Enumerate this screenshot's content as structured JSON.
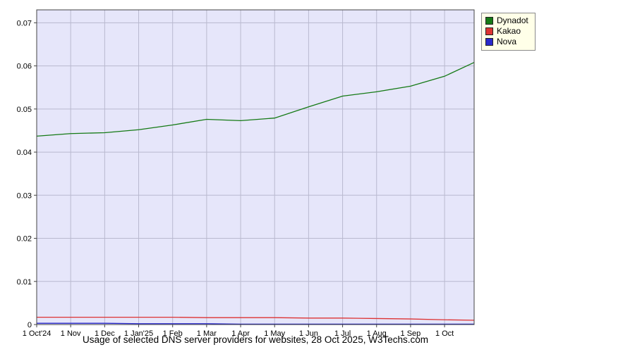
{
  "title": "Usage of selected DNS server providers for websites, 28 Oct 2025, W3Techs.com",
  "legend": [
    {
      "label": "Dynadot",
      "color": "#157a15"
    },
    {
      "label": "Kakao",
      "color": "#dd3333"
    },
    {
      "label": "Nova",
      "color": "#2929cc"
    }
  ],
  "colors": {
    "plot_bg": "#e6e6fa",
    "grid": "#b9b9cf",
    "axis": "#444444",
    "legend_bg": "#ffffe8",
    "text": "#000000"
  },
  "chart_data": {
    "type": "line",
    "title": "Usage of selected DNS server providers for websites, 28 Oct 2025, W3Techs.com",
    "xlabel": "",
    "ylabel": "",
    "x_tick_labels": [
      "1 Oct'24",
      "1 Nov",
      "1 Dec",
      "1 Jan'25",
      "1 Feb",
      "1 Mar",
      "1 Apr",
      "1 May",
      "1 Jun",
      "1 Jul",
      "1 Aug",
      "1 Sep",
      "1 Oct"
    ],
    "y_ticks": [
      0,
      0.01,
      0.02,
      0.03,
      0.04,
      0.05,
      0.06,
      0.07
    ],
    "y_tick_labels": [
      "0",
      "0.01",
      "0.02",
      "0.03",
      "0.04",
      "0.05",
      "0.06",
      "0.07"
    ],
    "xlim": [
      0,
      12.87
    ],
    "ylim": [
      0,
      0.073
    ],
    "grid": true,
    "legend_position": "top-right-outside",
    "x": [
      0,
      1,
      2,
      3,
      4,
      5,
      6,
      7,
      8,
      9,
      10,
      11,
      12,
      12.87
    ],
    "series": [
      {
        "name": "Dynadot",
        "color": "#157a15",
        "values": [
          0.0437,
          0.0443,
          0.0445,
          0.0452,
          0.0463,
          0.0476,
          0.0473,
          0.0479,
          0.0505,
          0.053,
          0.054,
          0.0553,
          0.0576,
          0.0608
        ]
      },
      {
        "name": "Kakao",
        "color": "#dd3333",
        "values": [
          0.0017,
          0.0017,
          0.0017,
          0.0017,
          0.0017,
          0.0016,
          0.0016,
          0.0016,
          0.0015,
          0.0015,
          0.0014,
          0.0013,
          0.0011,
          0.001
        ]
      },
      {
        "name": "Nova",
        "color": "#2929cc",
        "values": [
          0.0003,
          0.0003,
          0.0003,
          0.0002,
          0.0002,
          0.0002,
          0.0001,
          0.0001,
          0.0001,
          0.0001,
          0.0001,
          0.0001,
          0.0001,
          0.0001
        ]
      }
    ]
  }
}
